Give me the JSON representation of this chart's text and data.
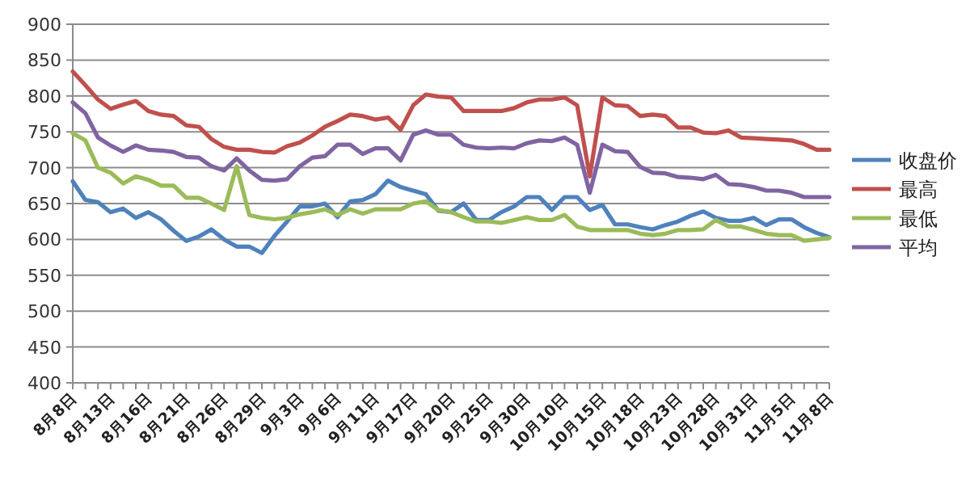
{
  "chart_data": {
    "type": "line",
    "categories": [
      "8月8日",
      null,
      null,
      "8月13日",
      null,
      null,
      "8月16日",
      null,
      null,
      "8月21日",
      null,
      null,
      "8月26日",
      null,
      null,
      "8月29日",
      null,
      null,
      "9月3日",
      null,
      null,
      "9月6日",
      null,
      null,
      "9月11日",
      null,
      null,
      "9月17日",
      null,
      null,
      "9月20日",
      null,
      null,
      "9月25日",
      null,
      null,
      "9月30日",
      null,
      null,
      "10月10日",
      null,
      null,
      "10月15日",
      null,
      null,
      "10月18日",
      null,
      null,
      "10月23日",
      null,
      null,
      "10月28日",
      null,
      null,
      "10月31日",
      null,
      null,
      "11月5日",
      null,
      null,
      "11月8日"
    ],
    "ylim": [
      400,
      900
    ],
    "yticks": [
      400,
      450,
      500,
      550,
      600,
      650,
      700,
      750,
      800,
      850,
      900
    ],
    "grid": "y",
    "legend": "right",
    "marker": "none",
    "series": [
      {
        "name": "收盘价",
        "color": "#4f81bd",
        "values": [
          681,
          655,
          652,
          638,
          643,
          630,
          638,
          628,
          612,
          598,
          604,
          614,
          600,
          590,
          590,
          581,
          605,
          625,
          646,
          646,
          650,
          631,
          653,
          655,
          663,
          682,
          673,
          668,
          663,
          640,
          638,
          650,
          627,
          627,
          638,
          646,
          659,
          659,
          641,
          659,
          659,
          641,
          648,
          621,
          621,
          617,
          614,
          620,
          625,
          633,
          639,
          630,
          626,
          626,
          630,
          620,
          628,
          628,
          617,
          609,
          603
        ]
      },
      {
        "name": "最高",
        "color": "#c0504d",
        "values": [
          834,
          815,
          795,
          782,
          788,
          793,
          779,
          774,
          772,
          759,
          757,
          740,
          729,
          725,
          725,
          722,
          721,
          730,
          735,
          745,
          757,
          765,
          774,
          772,
          767,
          770,
          753,
          787,
          802,
          799,
          798,
          779,
          779,
          779,
          779,
          783,
          791,
          795,
          795,
          798,
          787,
          688,
          798,
          787,
          786,
          772,
          774,
          772,
          756,
          756,
          749,
          748,
          752,
          742,
          741,
          740,
          739,
          738,
          733,
          725,
          725
        ]
      },
      {
        "name": "最低",
        "color": "#9bbb59",
        "values": [
          748,
          738,
          700,
          693,
          678,
          688,
          683,
          675,
          675,
          658,
          658,
          650,
          641,
          702,
          634,
          630,
          628,
          630,
          635,
          638,
          642,
          634,
          642,
          636,
          642,
          642,
          642,
          650,
          653,
          641,
          638,
          631,
          625,
          625,
          623,
          627,
          631,
          627,
          627,
          634,
          618,
          613,
          613,
          613,
          613,
          608,
          606,
          608,
          613,
          613,
          614,
          627,
          618,
          618,
          613,
          608,
          606,
          606,
          598,
          600,
          602
        ]
      },
      {
        "name": "平均",
        "color": "#8064a2",
        "values": [
          791,
          776,
          742,
          731,
          722,
          731,
          725,
          724,
          722,
          715,
          714,
          702,
          696,
          713,
          696,
          683,
          682,
          684,
          702,
          714,
          716,
          732,
          732,
          719,
          727,
          727,
          710,
          746,
          752,
          746,
          746,
          732,
          728,
          727,
          728,
          727,
          734,
          738,
          737,
          742,
          732,
          665,
          732,
          723,
          722,
          701,
          693,
          692,
          687,
          686,
          684,
          690,
          677,
          676,
          673,
          668,
          668,
          665,
          659,
          659,
          659
        ]
      }
    ]
  }
}
